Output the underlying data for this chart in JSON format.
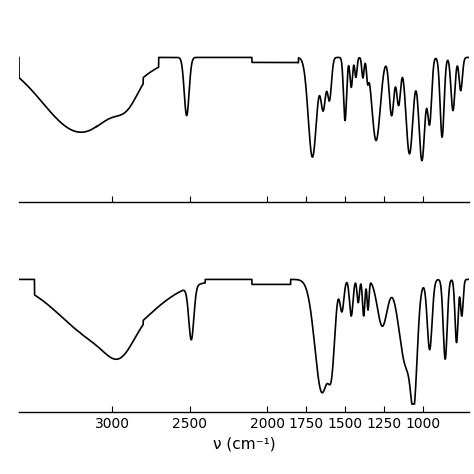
{
  "xlabel": "ν (cm⁻¹)",
  "xmin": 3600,
  "xmax": 700,
  "background_color": "#ffffff",
  "line_color": "#000000",
  "line_width": 1.2,
  "tick_labels": [
    "3000",
    "2500",
    "2000",
    "1750",
    "1500",
    "1250",
    "1000"
  ],
  "tick_positions": [
    3000,
    2500,
    2000,
    1750,
    1500,
    1250,
    1000
  ]
}
